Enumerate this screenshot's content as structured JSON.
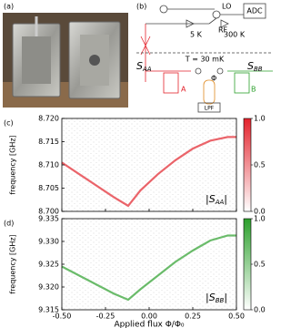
{
  "panel_labels": [
    "(a)",
    "(b)",
    "(c)",
    "(d)"
  ],
  "diagram": {
    "lo": "LO",
    "rf": "RF",
    "adc": "ADC",
    "stage_5k": "5 K",
    "stage_300k": "300 K",
    "temperature": "T = 30 mK",
    "port_a": "S",
    "port_a_sub": "AA",
    "port_b": "S",
    "port_b_sub": "BB",
    "res_a": "A",
    "res_b": "B",
    "flux": "Φ",
    "filter": "LPF"
  },
  "chart_data": [
    {
      "type": "heatmap",
      "ylabel": "frequency [GHz]",
      "color": "#e3232c",
      "label_start": "|S",
      "label_sub": "AA",
      "label_end": "|",
      "xlim": [
        -0.5,
        0.5
      ],
      "xticks": [
        -0.5,
        -0.25,
        0,
        0.25,
        0.5
      ],
      "ylim": [
        8.7,
        8.72
      ],
      "yticks": [
        {
          "value": 8.7,
          "label": "8.700"
        },
        {
          "value": 8.705,
          "label": "8.705"
        },
        {
          "value": 8.71,
          "label": "8.710"
        },
        {
          "value": 8.715,
          "label": "8.715"
        },
        {
          "value": 8.72,
          "label": "8.720"
        }
      ],
      "clim": [
        0,
        1
      ],
      "cticks": [
        {
          "value": 0,
          "label": "0.0"
        },
        {
          "value": 0.5,
          "label": "0.5"
        },
        {
          "value": 1,
          "label": "1.0"
        }
      ],
      "x": [
        -0.5,
        -0.4,
        -0.3,
        -0.2,
        -0.12,
        -0.05,
        0.05,
        0.15,
        0.25,
        0.35,
        0.45,
        0.5
      ],
      "y": [
        8.7105,
        8.708,
        8.7055,
        8.703,
        8.7012,
        8.7045,
        8.708,
        8.711,
        8.7135,
        8.7152,
        8.716,
        8.716
      ]
    },
    {
      "type": "heatmap",
      "ylabel": "frequency [GHz]",
      "xlabel": "Applied flux Φ/Φ₀",
      "color": "#2ca02c",
      "label_start": "|S",
      "label_sub": "BB",
      "label_end": "|",
      "xlim": [
        -0.5,
        0.5
      ],
      "xticks": [
        {
          "value": -0.5,
          "label": "-0.50"
        },
        {
          "value": -0.25,
          "label": "-0.25"
        },
        {
          "value": 0,
          "label": "0.00"
        },
        {
          "value": 0.25,
          "label": "0.25"
        },
        {
          "value": 0.5,
          "label": "0.50"
        }
      ],
      "ylim": [
        9.315,
        9.335
      ],
      "yticks": [
        {
          "value": 9.315,
          "label": "9.315"
        },
        {
          "value": 9.32,
          "label": "9.320"
        },
        {
          "value": 9.325,
          "label": "9.325"
        },
        {
          "value": 9.33,
          "label": "9.330"
        },
        {
          "value": 9.335,
          "label": "9.335"
        }
      ],
      "clim": [
        0,
        1
      ],
      "cticks": [
        {
          "value": 0,
          "label": "0.0"
        },
        {
          "value": 0.5,
          "label": "0.5"
        },
        {
          "value": 1,
          "label": "1.0"
        }
      ],
      "x": [
        -0.5,
        -0.4,
        -0.3,
        -0.2,
        -0.12,
        -0.05,
        0.05,
        0.15,
        0.25,
        0.35,
        0.45,
        0.5
      ],
      "y": [
        9.3245,
        9.3225,
        9.3205,
        9.3185,
        9.3172,
        9.3195,
        9.3225,
        9.3255,
        9.328,
        9.3302,
        9.3313,
        9.3313
      ]
    }
  ]
}
